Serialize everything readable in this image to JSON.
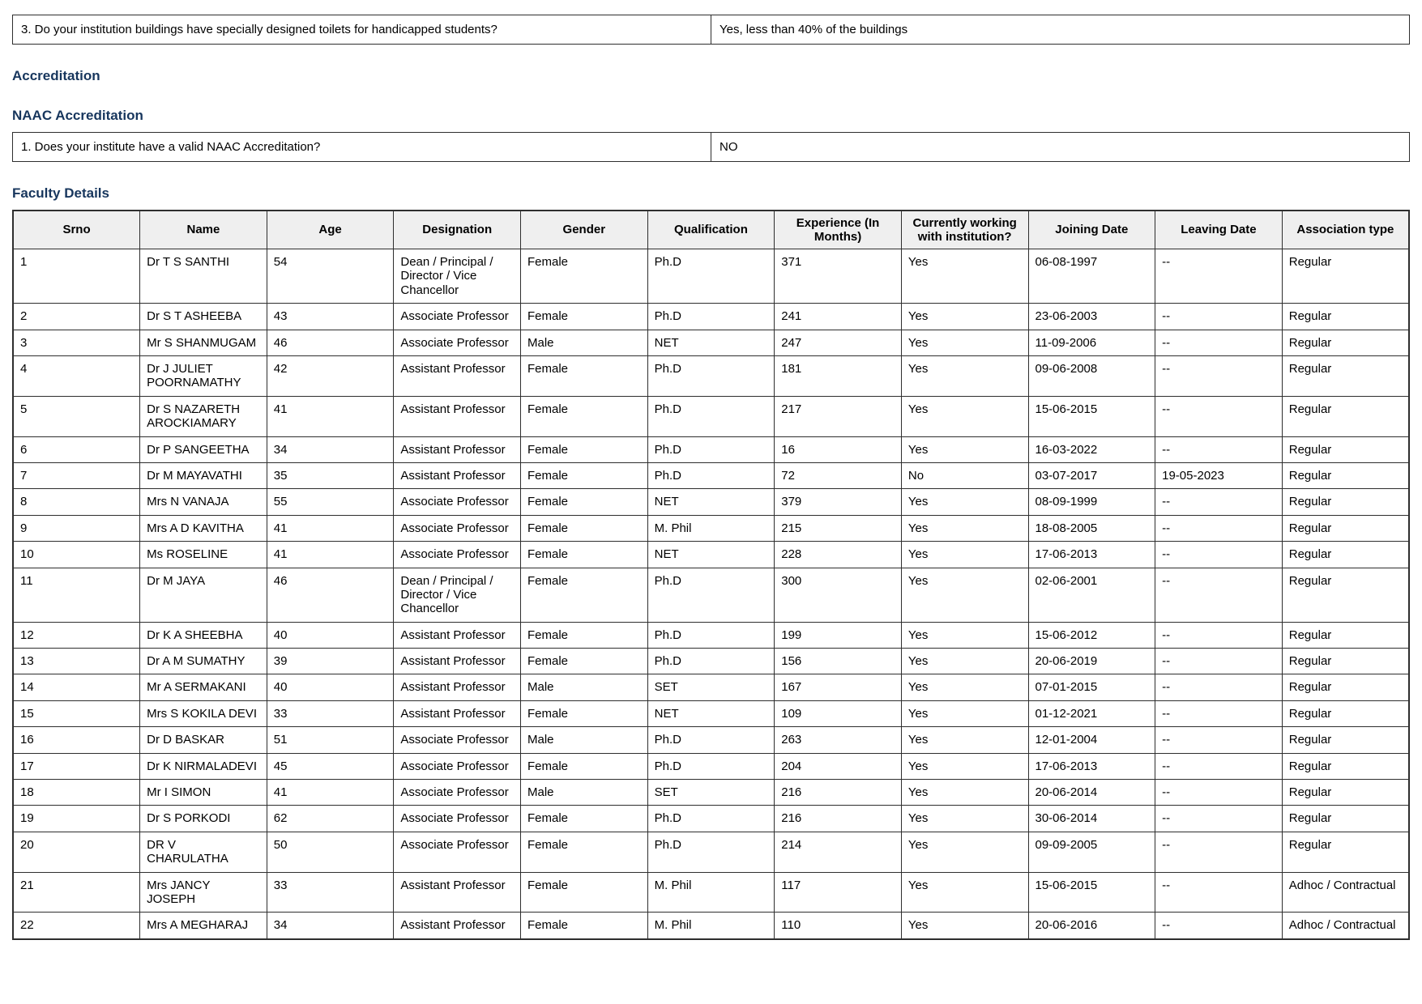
{
  "colors": {
    "heading_navy": "#17365d",
    "table_header_bg": "#efefef",
    "border": "#2e2e2e"
  },
  "toilet_question": {
    "label": "3. Do your institution buildings have specially designed toilets for handicapped students?",
    "answer": "Yes, less than 40% of the buildings"
  },
  "accreditation": {
    "heading": "Accreditation",
    "naac_heading": "NAAC Accreditation",
    "naac_question": {
      "label": "1. Does your institute have a valid NAAC Accreditation?",
      "answer": "NO"
    }
  },
  "faculty": {
    "heading": "Faculty Details",
    "columns": [
      "Srno",
      "Name",
      "Age",
      "Designation",
      "Gender",
      "Qualification",
      "Experience (In Months)",
      "Currently working with institution?",
      "Joining Date",
      "Leaving Date",
      "Association type"
    ],
    "rows": [
      [
        "1",
        "Dr T S SANTHI",
        "54",
        "Dean / Principal / Director / Vice Chancellor",
        "Female",
        "Ph.D",
        "371",
        "Yes",
        "06-08-1997",
        "--",
        "Regular"
      ],
      [
        "2",
        "Dr S T ASHEEBA",
        "43",
        "Associate Professor",
        "Female",
        "Ph.D",
        "241",
        "Yes",
        "23-06-2003",
        "--",
        "Regular"
      ],
      [
        "3",
        "Mr S SHANMUGAM",
        "46",
        "Associate Professor",
        "Male",
        "NET",
        "247",
        "Yes",
        "11-09-2006",
        "--",
        "Regular"
      ],
      [
        "4",
        "Dr J JULIET POORNAMATHY",
        "42",
        "Assistant Professor",
        "Female",
        "Ph.D",
        "181",
        "Yes",
        "09-06-2008",
        "--",
        "Regular"
      ],
      [
        "5",
        "Dr S NAZARETH AROCKIAMARY",
        "41",
        "Assistant Professor",
        "Female",
        "Ph.D",
        "217",
        "Yes",
        "15-06-2015",
        "--",
        "Regular"
      ],
      [
        "6",
        "Dr P SANGEETHA",
        "34",
        "Assistant Professor",
        "Female",
        "Ph.D",
        "16",
        "Yes",
        "16-03-2022",
        "--",
        "Regular"
      ],
      [
        "7",
        "Dr M MAYAVATHI",
        "35",
        "Assistant Professor",
        "Female",
        "Ph.D",
        "72",
        "No",
        "03-07-2017",
        "19-05-2023",
        "Regular"
      ],
      [
        "8",
        "Mrs N VANAJA",
        "55",
        "Associate Professor",
        "Female",
        "NET",
        "379",
        "Yes",
        "08-09-1999",
        "--",
        "Regular"
      ],
      [
        "9",
        "Mrs A D KAVITHA",
        "41",
        "Associate Professor",
        "Female",
        "M. Phil",
        "215",
        "Yes",
        "18-08-2005",
        "--",
        "Regular"
      ],
      [
        "10",
        "Ms ROSELINE",
        "41",
        "Associate Professor",
        "Female",
        "NET",
        "228",
        "Yes",
        "17-06-2013",
        "--",
        "Regular"
      ],
      [
        "11",
        "Dr M JAYA",
        "46",
        "Dean / Principal / Director / Vice Chancellor",
        "Female",
        "Ph.D",
        "300",
        "Yes",
        "02-06-2001",
        "--",
        "Regular"
      ],
      [
        "12",
        "Dr K A SHEEBHA",
        "40",
        "Assistant Professor",
        "Female",
        "Ph.D",
        "199",
        "Yes",
        "15-06-2012",
        "--",
        "Regular"
      ],
      [
        "13",
        "Dr A M SUMATHY",
        "39",
        "Assistant Professor",
        "Female",
        "Ph.D",
        "156",
        "Yes",
        "20-06-2019",
        "--",
        "Regular"
      ],
      [
        "14",
        "Mr A SERMAKANI",
        "40",
        "Assistant Professor",
        "Male",
        "SET",
        "167",
        "Yes",
        "07-01-2015",
        "--",
        "Regular"
      ],
      [
        "15",
        "Mrs S KOKILA DEVI",
        "33",
        "Assistant Professor",
        "Female",
        "NET",
        "109",
        "Yes",
        "01-12-2021",
        "--",
        "Regular"
      ],
      [
        "16",
        "Dr D BASKAR",
        "51",
        "Associate Professor",
        "Male",
        "Ph.D",
        "263",
        "Yes",
        "12-01-2004",
        "--",
        "Regular"
      ],
      [
        "17",
        "Dr K NIRMALADEVI",
        "45",
        "Associate Professor",
        "Female",
        "Ph.D",
        "204",
        "Yes",
        "17-06-2013",
        "--",
        "Regular"
      ],
      [
        "18",
        "Mr I SIMON",
        "41",
        "Associate Professor",
        "Male",
        "SET",
        "216",
        "Yes",
        "20-06-2014",
        "--",
        "Regular"
      ],
      [
        "19",
        "Dr S PORKODI",
        "62",
        "Associate Professor",
        "Female",
        "Ph.D",
        "216",
        "Yes",
        "30-06-2014",
        "--",
        "Regular"
      ],
      [
        "20",
        "DR V CHARULATHA",
        "50",
        "Associate Professor",
        "Female",
        "Ph.D",
        "214",
        "Yes",
        "09-09-2005",
        "--",
        "Regular"
      ],
      [
        "21",
        "Mrs JANCY JOSEPH",
        "33",
        "Assistant Professor",
        "Female",
        "M. Phil",
        "117",
        "Yes",
        "15-06-2015",
        "--",
        "Adhoc / Contractual"
      ],
      [
        "22",
        "Mrs A MEGHARAJ",
        "34",
        "Assistant Professor",
        "Female",
        "M. Phil",
        "110",
        "Yes",
        "20-06-2016",
        "--",
        "Adhoc / Contractual"
      ]
    ]
  }
}
